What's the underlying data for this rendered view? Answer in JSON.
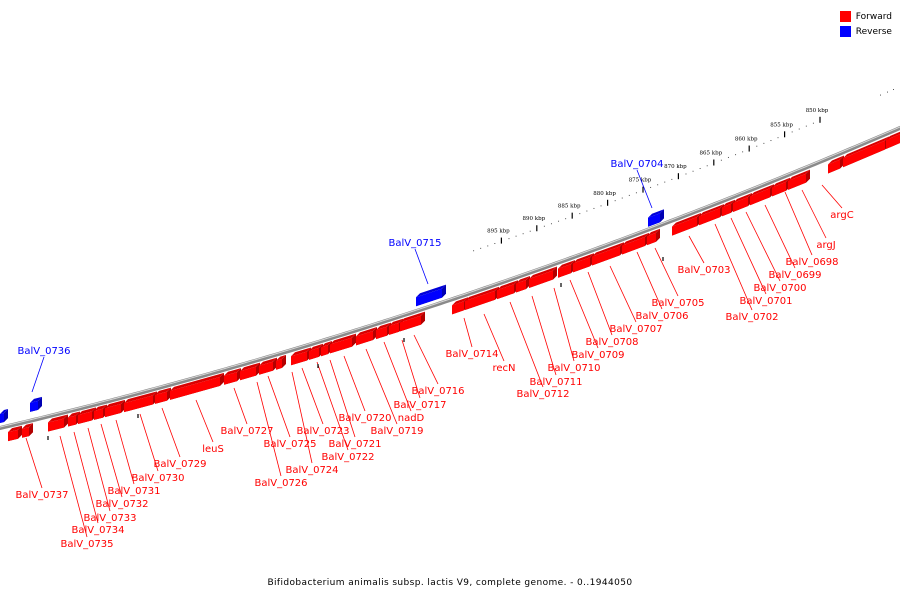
{
  "legend": {
    "forward_label": "Forward",
    "reverse_label": "Reverse",
    "forward_color": "#ff0000",
    "reverse_color": "#0000ff"
  },
  "footer": {
    "caption": "Bifidobacterium animalis subsp. lactis V9, complete genome. - 0..1944050"
  },
  "genome": {
    "ticks_kbp": [
      850,
      855,
      860,
      865,
      870,
      875,
      880,
      885,
      890,
      895
    ],
    "tick_unit": "kbp"
  },
  "genes": {
    "forward": [
      "argC",
      "argJ",
      "BalV_0698",
      "BalV_0699",
      "BalV_0700",
      "BalV_0701",
      "BalV_0702",
      "BalV_0703",
      "BalV_0705",
      "BalV_0706",
      "BalV_0707",
      "BalV_0708",
      "BalV_0709",
      "BalV_0710",
      "BalV_0711",
      "BalV_0712",
      "recN",
      "BalV_0714",
      "BalV_0716",
      "BalV_0717",
      "nadD",
      "BalV_0719",
      "BalV_0720",
      "BalV_0721",
      "BalV_0722",
      "BalV_0723",
      "BalV_0724",
      "BalV_0725",
      "BalV_0726",
      "BalV_0727",
      "leuS",
      "BalV_0729",
      "BalV_0730",
      "BalV_0731",
      "BalV_0732",
      "BalV_0733",
      "BalV_0734",
      "BalV_0735",
      "BalV_0737"
    ],
    "reverse": [
      "BalV_0704",
      "BalV_0715",
      "BalV_0736"
    ]
  }
}
